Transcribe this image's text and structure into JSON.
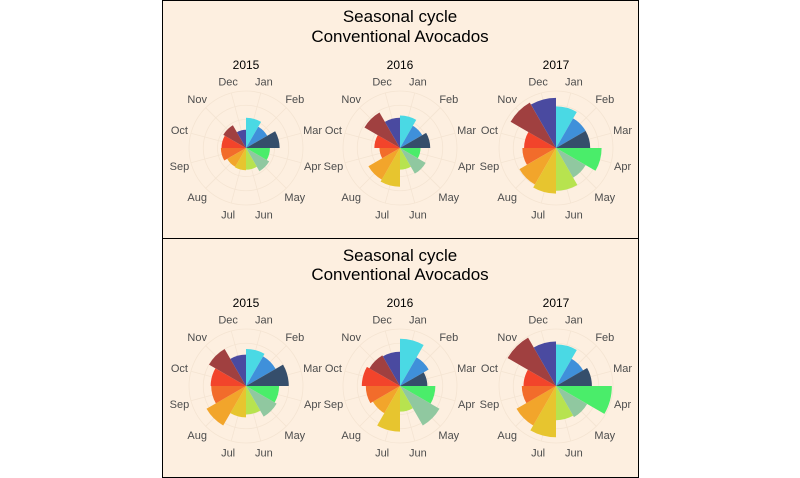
{
  "chart_data": [
    {
      "type": "polar-bar",
      "title": "Seasonal cycle",
      "subtitle": "Conventional Avocados",
      "categories": [
        "Jan",
        "Feb",
        "Mar",
        "Apr",
        "May",
        "Jun",
        "Jul",
        "Aug",
        "Sep",
        "Oct",
        "Nov",
        "Dec"
      ],
      "colors": [
        "#4ad9e4",
        "#3f90da",
        "#354e6b",
        "#4aed6a",
        "#90c8a0",
        "#b7e34f",
        "#e7c52f",
        "#f2a52b",
        "#f26c2b",
        "#f2442b",
        "#a04040",
        "#4a4aa0"
      ],
      "grid": true,
      "facets": [
        {
          "label": "2015",
          "values": [
            0.53,
            0.43,
            0.59,
            0.42,
            0.47,
            0.38,
            0.39,
            0.38,
            0.44,
            0.43,
            0.46,
            0.32
          ]
        },
        {
          "label": "2016",
          "values": [
            0.57,
            0.45,
            0.53,
            0.36,
            0.52,
            0.38,
            0.68,
            0.64,
            0.36,
            0.45,
            0.72,
            0.53
          ]
        },
        {
          "label": "2017",
          "values": [
            0.73,
            0.6,
            0.6,
            0.8,
            0.6,
            0.75,
            0.8,
            0.74,
            0.59,
            0.56,
            0.92,
            0.88
          ]
        }
      ]
    },
    {
      "type": "polar-bar",
      "title": "Seasonal cycle",
      "subtitle": "Conventional Avocados",
      "categories": [
        "Jan",
        "Feb",
        "Mar",
        "Apr",
        "May",
        "Jun",
        "Jul",
        "Aug",
        "Sep",
        "Oct",
        "Nov",
        "Dec"
      ],
      "colors": [
        "#4ad9e4",
        "#3f90da",
        "#354e6b",
        "#4aed6a",
        "#90c8a0",
        "#b7e34f",
        "#e7c52f",
        "#f2a52b",
        "#f26c2b",
        "#f2442b",
        "#a04040",
        "#4a4aa0"
      ],
      "grid": true,
      "facets": [
        {
          "label": "2015",
          "values": [
            0.65,
            0.6,
            0.75,
            0.58,
            0.62,
            0.5,
            0.55,
            0.8,
            0.61,
            0.62,
            0.75,
            0.55
          ]
        },
        {
          "label": "2016",
          "values": [
            0.83,
            0.58,
            0.48,
            0.62,
            0.8,
            0.45,
            0.8,
            0.55,
            0.6,
            0.67,
            0.62,
            0.6
          ]
        },
        {
          "label": "2017",
          "values": [
            0.73,
            0.55,
            0.63,
            0.98,
            0.63,
            0.6,
            0.9,
            0.8,
            0.6,
            0.57,
            0.98,
            0.78
          ]
        }
      ]
    }
  ]
}
